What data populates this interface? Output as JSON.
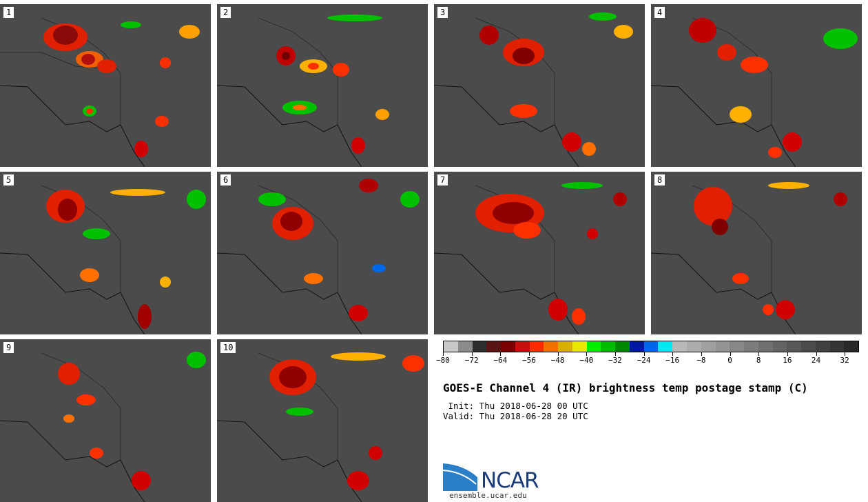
{
  "panels": [
    {
      "label": "1"
    },
    {
      "label": "2"
    },
    {
      "label": "3"
    },
    {
      "label": "4"
    },
    {
      "label": "5"
    },
    {
      "label": "6"
    },
    {
      "label": "7"
    },
    {
      "label": "8"
    },
    {
      "label": "9"
    },
    {
      "label": "10"
    }
  ],
  "colorbar": {
    "ticks": [
      "−80",
      "−72",
      "−64",
      "−56",
      "−48",
      "−40",
      "−32",
      "−24",
      "−16",
      "−8",
      "0",
      "8",
      "16",
      "24",
      "32"
    ],
    "colors": [
      "#c8c8c8",
      "#8c8c8c",
      "#2e2e2e",
      "#5a1414",
      "#7a0000",
      "#c81010",
      "#ff2a00",
      "#f07000",
      "#d8b000",
      "#e8e800",
      "#00ee00",
      "#00bb00",
      "#008800",
      "#0018a0",
      "#0068e8",
      "#00e8f0",
      "#b8b8b8",
      "#acacac",
      "#a0a0a0",
      "#949494",
      "#888888",
      "#7c7c7c",
      "#707070",
      "#646464",
      "#585858",
      "#4c4c4c",
      "#404040",
      "#343434",
      "#282828"
    ]
  },
  "title": "GOES-E Channel 4 (IR) brightness temp postage stamp (C)",
  "init": " Init: Thu 2018-06-28 00 UTC",
  "valid": "Valid: Thu 2018-06-28 20 UTC",
  "logo": {
    "name": "NCAR",
    "url": "ensemble.ucar.edu"
  }
}
